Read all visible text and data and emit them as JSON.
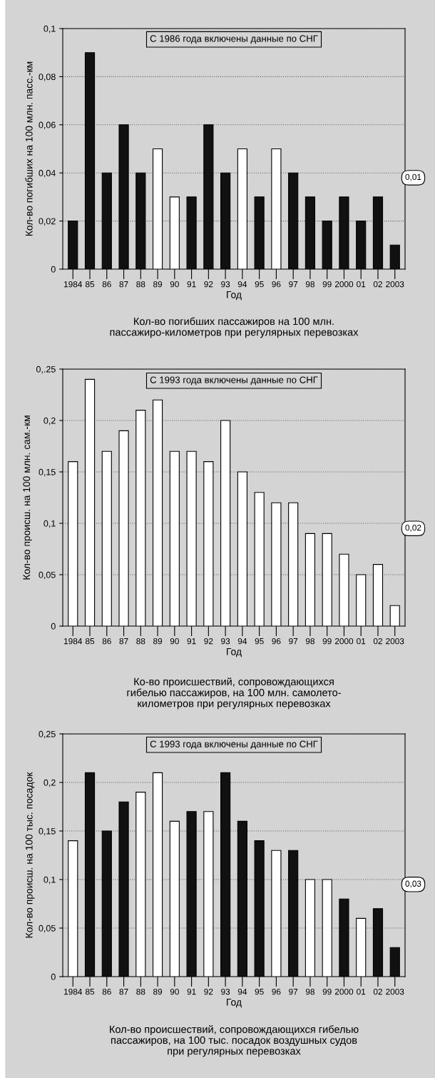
{
  "chart_data": [
    {
      "type": "bar",
      "title": "Кол-во погибших пассажиров на 100 млн.\nпассажиро-километров при регулярных перевозках",
      "xlabel": "Год",
      "ylabel": "Кол-во погибших на 100 млн. пасс.-км",
      "categories": [
        "1984",
        "85",
        "86",
        "87",
        "88",
        "89",
        "90",
        "91",
        "92",
        "93",
        "94",
        "95",
        "96",
        "97",
        "98",
        "99",
        "2000",
        "01",
        "02",
        "2003"
      ],
      "values": [
        0.02,
        0.09,
        0.04,
        0.06,
        0.04,
        0.05,
        0.03,
        0.03,
        0.06,
        0.04,
        0.05,
        0.03,
        0.05,
        0.04,
        0.03,
        0.02,
        0.03,
        0.02,
        0.03,
        0.01
      ],
      "colors": [
        "#111111",
        "#111111",
        "#111111",
        "#111111",
        "#111111",
        "#ffffff",
        "#ffffff",
        "#111111",
        "#111111",
        "#111111",
        "#ffffff",
        "#111111",
        "#ffffff",
        "#111111",
        "#111111",
        "#111111",
        "#111111",
        "#111111",
        "#111111",
        "#111111"
      ],
      "ylim": [
        0,
        0.1
      ],
      "yticks": [
        {
          "value": 0,
          "label": "0"
        },
        {
          "value": 0.02,
          "label": "0,02"
        },
        {
          "value": 0.04,
          "label": "0,04"
        },
        {
          "value": 0.06,
          "label": "0,06"
        },
        {
          "value": 0.08,
          "label": "0,08"
        },
        {
          "value": 0.1,
          "label": "0,1"
        }
      ],
      "grid": "y",
      "legend": false,
      "annotations": [
        "С 1986 года включены данные по СНГ",
        "0,01"
      ]
    },
    {
      "type": "bar",
      "title": "Ко-во происшествий, сопровождающихся\nгибелью пассажиров, на 100 млн. самолето-\nкилометров при регулярных перевозках",
      "xlabel": "Год",
      "ylabel": "Кол-во происш. на 100 млн. сам.-км",
      "categories": [
        "1984",
        "85",
        "86",
        "87",
        "88",
        "89",
        "90",
        "91",
        "92",
        "93",
        "94",
        "95",
        "96",
        "97",
        "98",
        "99",
        "2000",
        "01",
        "02",
        "2003"
      ],
      "values": [
        0.16,
        0.24,
        0.17,
        0.19,
        0.21,
        0.22,
        0.17,
        0.17,
        0.16,
        0.2,
        0.15,
        0.13,
        0.12,
        0.12,
        0.09,
        0.09,
        0.07,
        0.05,
        0.06,
        0.02
      ],
      "colors": [
        "#ffffff",
        "#ffffff",
        "#ffffff",
        "#ffffff",
        "#ffffff",
        "#ffffff",
        "#ffffff",
        "#ffffff",
        "#ffffff",
        "#ffffff",
        "#ffffff",
        "#ffffff",
        "#ffffff",
        "#ffffff",
        "#ffffff",
        "#ffffff",
        "#ffffff",
        "#ffffff",
        "#ffffff",
        "#ffffff"
      ],
      "ylim": [
        0,
        0.25
      ],
      "yticks": [
        {
          "value": 0,
          "label": "0"
        },
        {
          "value": 0.05,
          "label": "0,05"
        },
        {
          "value": 0.1,
          "label": "0,1"
        },
        {
          "value": 0.15,
          "label": "0,15"
        },
        {
          "value": 0.2,
          "label": "0,2"
        },
        {
          "value": 0.25,
          "label": "0,.25"
        }
      ],
      "grid": "y",
      "legend": false,
      "annotations": [
        "С 1993 года включены данные по СНГ",
        "0,02"
      ]
    },
    {
      "type": "bar",
      "title": "Кол-во происшествий, сопровождающихся гибелью\nпассажиров, на 100 тыс. посадок воздушных судов\nпри регулярных перевозках",
      "xlabel": "Год",
      "ylabel": "Кол-во происш. на 100 тыс. посадок",
      "categories": [
        "1984",
        "85",
        "86",
        "87",
        "88",
        "89",
        "90",
        "91",
        "92",
        "93",
        "94",
        "95",
        "96",
        "97",
        "98",
        "99",
        "2000",
        "01",
        "02",
        "2003"
      ],
      "values": [
        0.14,
        0.21,
        0.15,
        0.18,
        0.19,
        0.21,
        0.16,
        0.17,
        0.17,
        0.21,
        0.16,
        0.14,
        0.13,
        0.13,
        0.1,
        0.1,
        0.08,
        0.06,
        0.07,
        0.03
      ],
      "colors": [
        "#ffffff",
        "#111111",
        "#111111",
        "#111111",
        "#ffffff",
        "#ffffff",
        "#ffffff",
        "#111111",
        "#ffffff",
        "#111111",
        "#111111",
        "#111111",
        "#ffffff",
        "#111111",
        "#ffffff",
        "#ffffff",
        "#111111",
        "#ffffff",
        "#111111",
        "#111111"
      ],
      "ylim": [
        0,
        0.25
      ],
      "yticks": [
        {
          "value": 0,
          "label": "0"
        },
        {
          "value": 0.05,
          "label": "0,05"
        },
        {
          "value": 0.1,
          "label": "0,1"
        },
        {
          "value": 0.15,
          "label": "0,15"
        },
        {
          "value": 0.2,
          "label": "0,2"
        },
        {
          "value": 0.25,
          "label": "0,25"
        }
      ],
      "grid": "y",
      "legend": false,
      "annotations": [
        "С 1993 года включены данные по СНГ",
        "0,03"
      ]
    }
  ]
}
